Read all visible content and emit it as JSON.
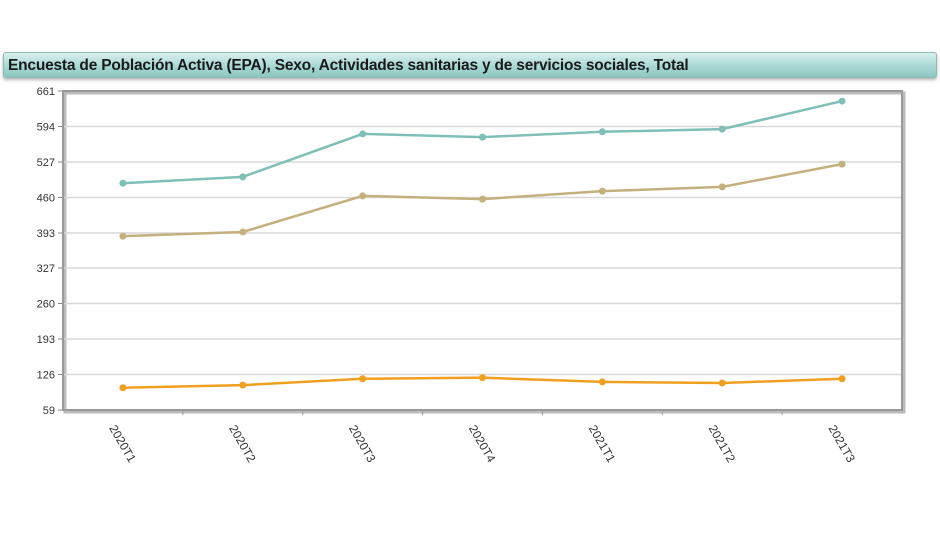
{
  "chart_data": {
    "type": "line",
    "title": "Encuesta de Población Activa (EPA), Sexo, Actividades sanitarias y de servicios sociales, Total",
    "xlabel": "",
    "ylabel": "",
    "categories": [
      "2020T1",
      "2020T2",
      "2020T3",
      "2020T4",
      "2021T1",
      "2021T2",
      "2021T3"
    ],
    "ylim": [
      59,
      661
    ],
    "yticks": [
      59,
      126,
      193,
      260,
      327,
      393,
      460,
      527,
      594,
      661
    ],
    "grid": true,
    "series": [
      {
        "color": "#7fbfb8",
        "values": [
          487,
          499,
          580,
          574,
          584,
          589,
          642
        ]
      },
      {
        "color": "#c4b07f",
        "values": [
          387,
          395,
          463,
          457,
          472,
          480,
          523
        ]
      },
      {
        "color": "#f0a020",
        "values": [
          101,
          106,
          118,
          120,
          112,
          110,
          118
        ]
      }
    ]
  }
}
